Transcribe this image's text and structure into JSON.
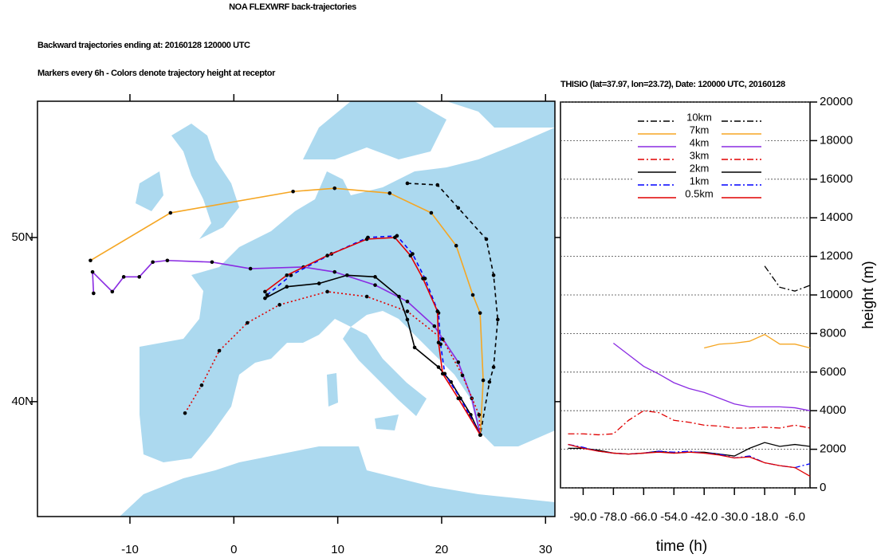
{
  "chart_data": [
    {
      "type": "trajectory-map",
      "title": "NOA FLEXWRF back-trajectories",
      "subtitles": [
        "Backward trajectories ending at: 20160128  120000 UTC",
        "Markers every 6h - Colors denote trajectory height at receptor"
      ],
      "xlim": [
        -18.9,
        30.9
      ],
      "ylim": [
        33,
        58.3
      ],
      "xticks": [
        -10,
        0,
        10,
        20,
        30
      ],
      "yticks": [
        {
          "value": 40,
          "label": "40N"
        },
        {
          "value": 50,
          "label": "50N"
        }
      ],
      "series": [
        {
          "color": "#000000",
          "dash": "dash",
          "x": [
            16.7,
            19.6,
            21.6,
            24.3,
            25.0,
            25.4,
            25.0,
            24.6,
            23.72
          ],
          "values": [
            53.3,
            53.2,
            51.8,
            49.9,
            47.7,
            45.0,
            42.1,
            41.2,
            37.97
          ]
        },
        {
          "color": "#f5a623",
          "dash": "solid",
          "x": [
            -13.8,
            -6.1,
            5.7,
            9.7,
            15.0,
            19.0,
            21.4,
            23.0,
            23.7,
            24.0,
            23.72
          ],
          "values": [
            48.6,
            51.5,
            52.8,
            53.0,
            52.7,
            51.5,
            49.5,
            46.5,
            45.4,
            41.3,
            37.97
          ]
        },
        {
          "color": "#8a2be2",
          "dash": "solid",
          "x": [
            -13.5,
            -13.6,
            -11.7,
            -10.6,
            -9.1,
            -7.8,
            -6.4,
            -2.1,
            1.6,
            6.7,
            9.7,
            13.6,
            16.7,
            19.3,
            21.6,
            22.9,
            23.72
          ],
          "values": [
            46.6,
            47.9,
            46.7,
            47.6,
            47.6,
            48.5,
            48.6,
            48.5,
            48.1,
            48.2,
            47.9,
            47.1,
            46.1,
            44.6,
            42.4,
            40.2,
            37.97
          ]
        },
        {
          "color": "#e00000",
          "dash": "dot",
          "x": [
            -4.7,
            -3.1,
            -1.4,
            1.3,
            4.4,
            9.0,
            12.8,
            16.7,
            20.1,
            22.0,
            23.6,
            23.72
          ],
          "values": [
            39.3,
            41.0,
            43.1,
            44.8,
            45.9,
            46.7,
            46.4,
            45.5,
            43.8,
            41.6,
            39.2,
            37.97
          ]
        },
        {
          "color": "#000000",
          "dash": "solid",
          "x": [
            3.0,
            5.1,
            8.2,
            10.9,
            13.6,
            15.9,
            16.7,
            17.4,
            19.7,
            20.9,
            22.8,
            23.72
          ],
          "values": [
            46.3,
            47.0,
            47.2,
            47.7,
            47.6,
            46.4,
            45.0,
            43.3,
            42.1,
            41.2,
            39.2,
            37.97
          ]
        },
        {
          "color": "#0000ff",
          "dash": "dash",
          "x": [
            3.2,
            5.5,
            9.4,
            12.9,
            15.7,
            17.2,
            18.4,
            19.7,
            19.9,
            20.3,
            21.8,
            23.72
          ],
          "values": [
            46.5,
            47.7,
            49.0,
            50.0,
            50.1,
            49.0,
            47.5,
            45.4,
            43.5,
            41.7,
            40.2,
            37.97
          ]
        },
        {
          "color": "#e00000",
          "dash": "solid",
          "x": [
            3.0,
            5.1,
            9.0,
            12.8,
            15.5,
            17.0,
            18.2,
            19.6,
            19.7,
            20.1,
            21.6,
            23.72
          ],
          "values": [
            46.7,
            47.7,
            48.9,
            49.9,
            50.0,
            48.9,
            47.5,
            45.5,
            43.6,
            41.7,
            40.2,
            37.97
          ]
        }
      ]
    },
    {
      "type": "line",
      "title": "THISIO (lat=37.97,  lon=23.72), Date: 120000 UTC, 20160128",
      "x_label": "time (h)",
      "y_label": "height (m)",
      "xlim": [
        -99,
        0
      ],
      "ylim": [
        0,
        20000
      ],
      "xticks": [
        {
          "value": -90,
          "label": "-90.0"
        },
        {
          "value": -78,
          "label": "-78.0"
        },
        {
          "value": -66,
          "label": "-66.0"
        },
        {
          "value": -54,
          "label": "-54.0"
        },
        {
          "value": -42,
          "label": "-42.0"
        },
        {
          "value": -30,
          "label": "-30.0"
        },
        {
          "value": -18,
          "label": "-18.0"
        },
        {
          "value": -6,
          "label": "-6.0"
        }
      ],
      "yticks": [
        0,
        2000,
        4000,
        6000,
        8000,
        10000,
        12000,
        14000,
        16000,
        18000,
        20000
      ],
      "grid": true,
      "legend": "top",
      "x": [
        -96,
        -90,
        -84,
        -78,
        -72,
        -66,
        -60,
        -54,
        -48,
        -42,
        -36,
        -30,
        -24,
        -18,
        -12,
        -6,
        0
      ],
      "series": [
        {
          "name": "10km",
          "color": "#000000",
          "dash": "dash-dot",
          "values": [
            null,
            null,
            null,
            null,
            null,
            null,
            null,
            null,
            null,
            null,
            null,
            null,
            null,
            11500,
            10400,
            10200,
            10500
          ]
        },
        {
          "name": "7km",
          "color": "#f5a623",
          "dash": "solid",
          "values": [
            null,
            null,
            null,
            null,
            null,
            null,
            null,
            null,
            null,
            7250,
            7450,
            7500,
            7600,
            7950,
            7450,
            7450,
            7250
          ]
        },
        {
          "name": "4km",
          "color": "#8a2be2",
          "dash": "solid",
          "values": [
            null,
            null,
            null,
            7500,
            6900,
            6300,
            5900,
            5450,
            5150,
            4950,
            4650,
            4350,
            4200,
            4200,
            4200,
            4150,
            4000
          ]
        },
        {
          "name": "3km",
          "color": "#e00000",
          "dash": "dash-dot",
          "values": [
            2800,
            2800,
            2750,
            2800,
            3500,
            4000,
            3900,
            3500,
            3400,
            3250,
            3200,
            3100,
            3100,
            3150,
            3100,
            3250,
            3100
          ]
        },
        {
          "name": "2km",
          "color": "#000000",
          "dash": "solid",
          "values": [
            2050,
            2050,
            1950,
            1800,
            1750,
            1800,
            1900,
            1800,
            1850,
            1850,
            1750,
            1650,
            2050,
            2350,
            2150,
            2250,
            2150
          ]
        },
        {
          "name": "1km",
          "color": "#0000ff",
          "dash": "dash-dot",
          "values": [
            2250,
            2100,
            1900,
            1800,
            1750,
            1800,
            1900,
            1850,
            1900,
            1800,
            1750,
            1550,
            1650,
            1300,
            1150,
            1050,
            1250
          ]
        },
        {
          "name": "0.5km",
          "color": "#e00000",
          "dash": "solid",
          "values": [
            2250,
            2050,
            1900,
            1800,
            1750,
            1800,
            1850,
            1800,
            1850,
            1800,
            1700,
            1550,
            1600,
            1300,
            1150,
            1050,
            600
          ]
        }
      ]
    }
  ]
}
